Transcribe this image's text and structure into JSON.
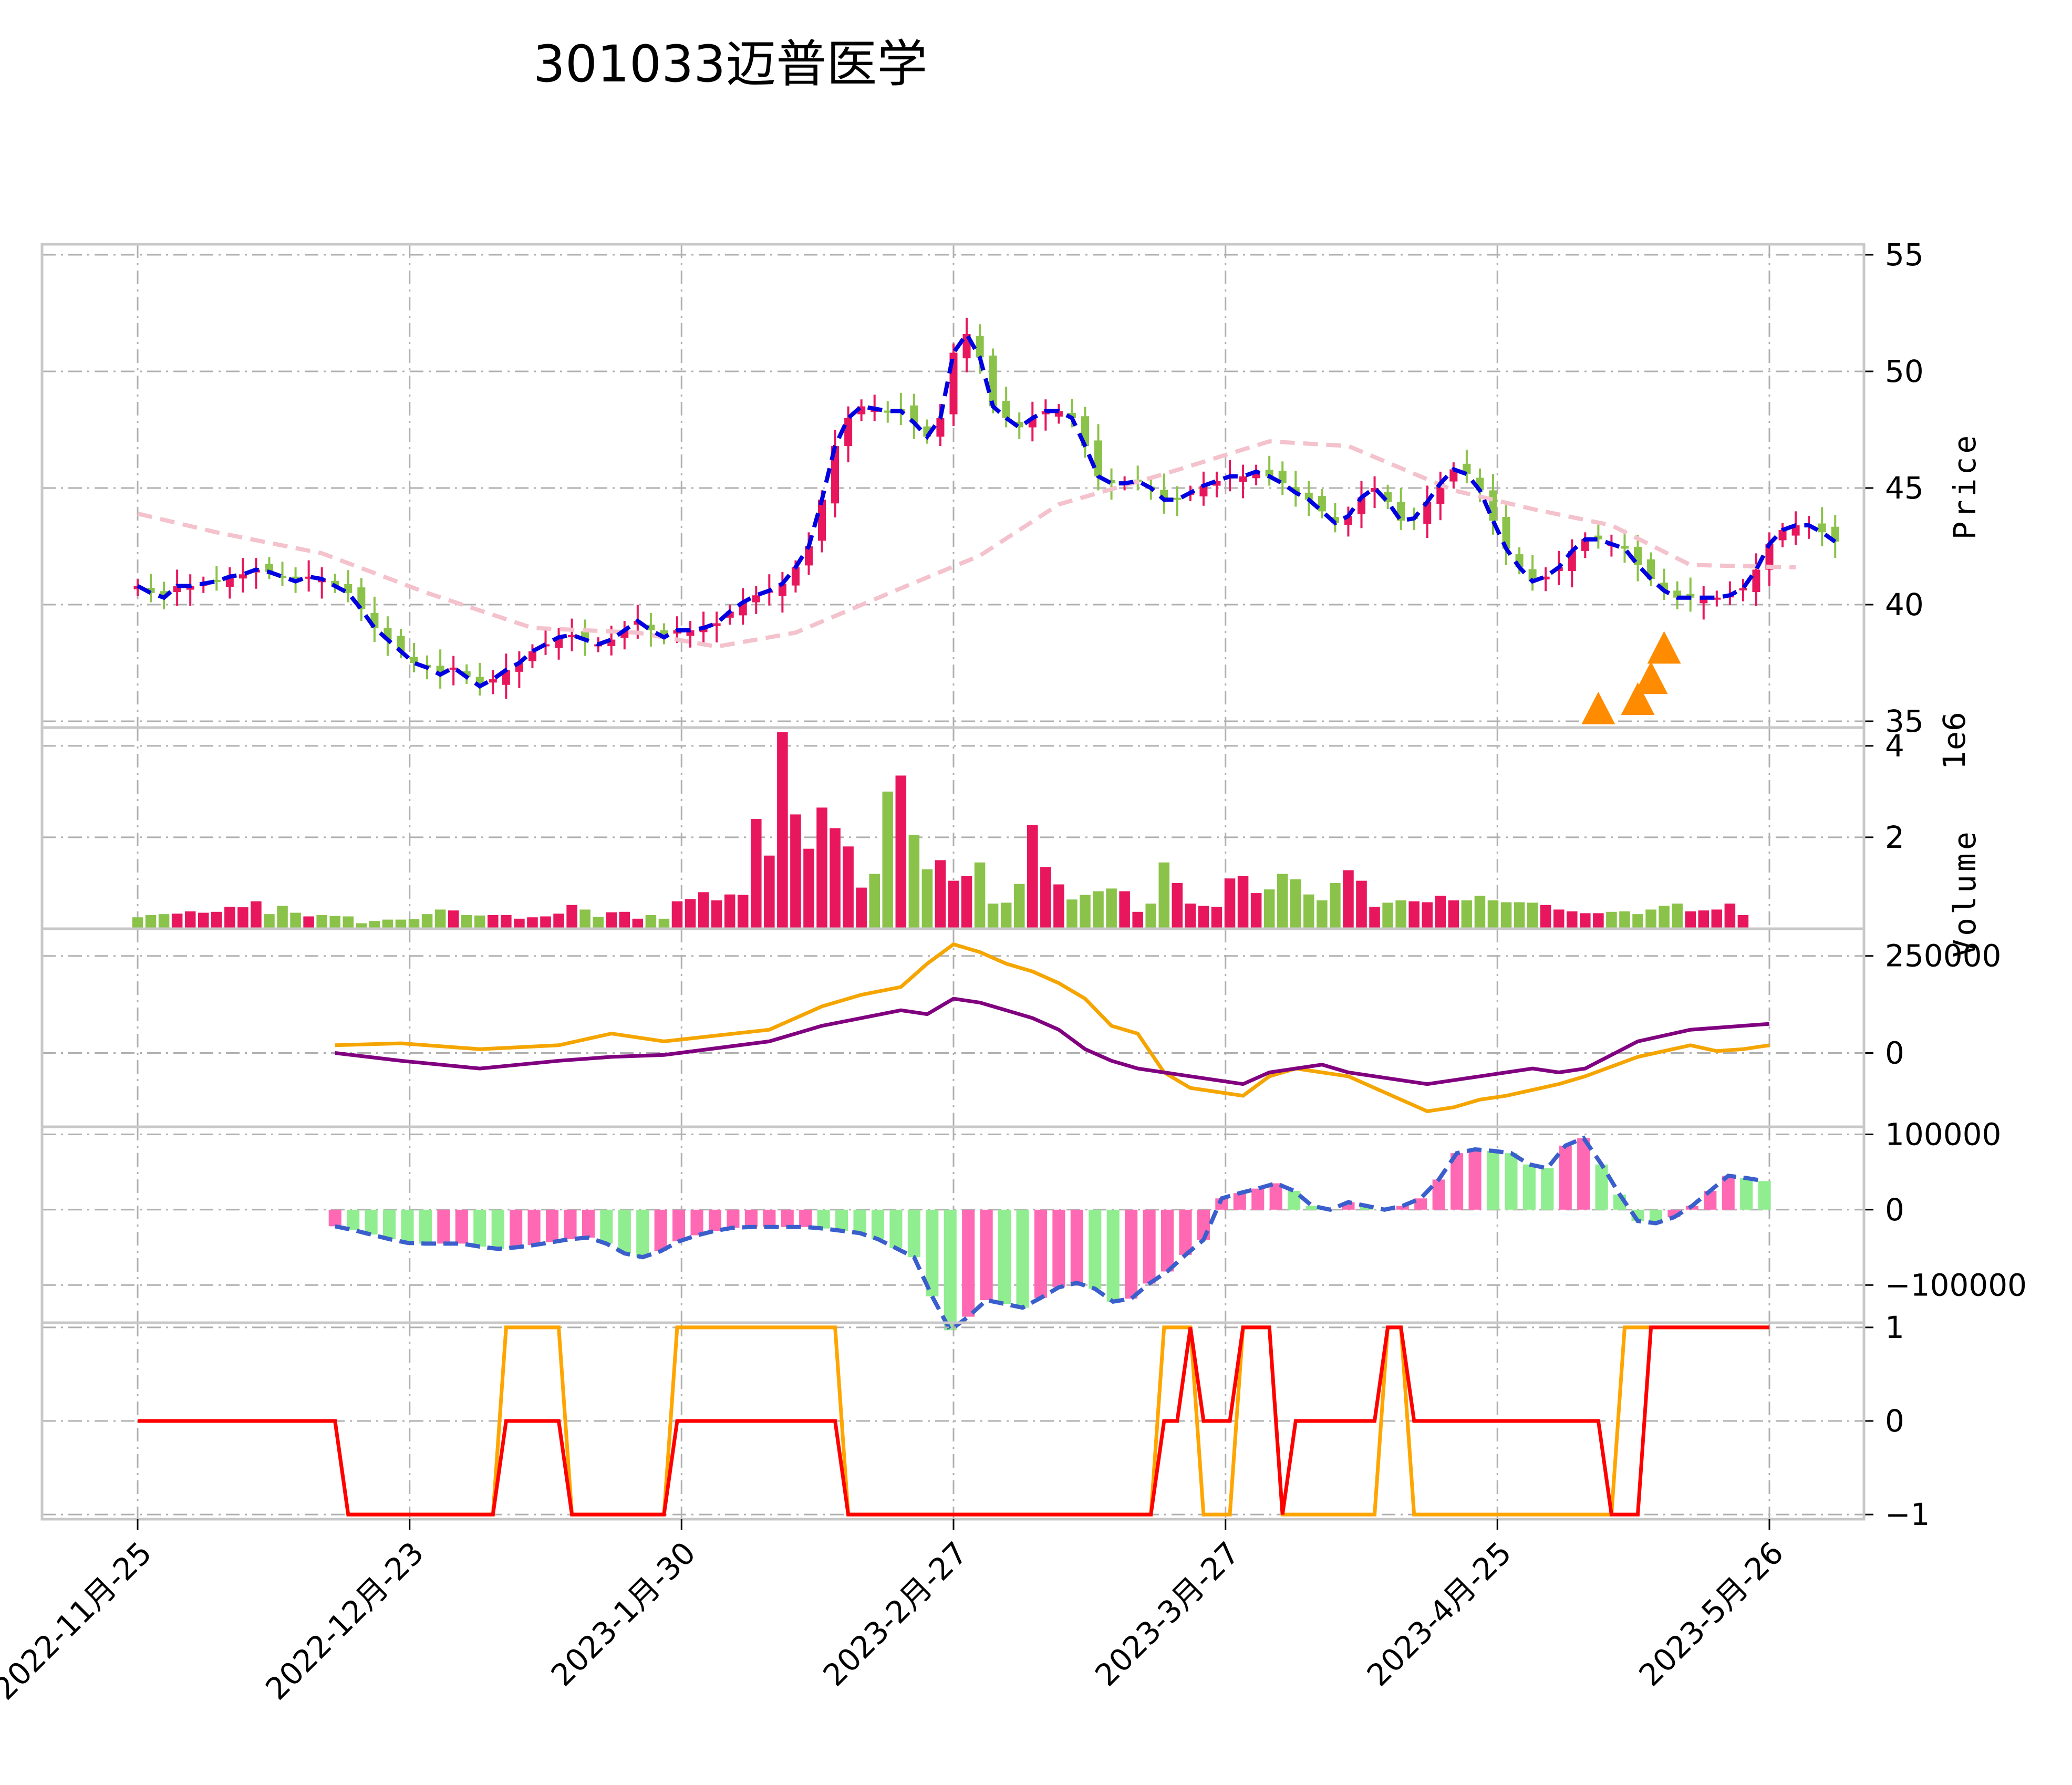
{
  "title": "301033迈普医学",
  "colors": {
    "up": "#e8175d",
    "down": "#8bc34a",
    "ma_short": "#0000e0",
    "ma_long": "#f4c2cc",
    "signal": "#ff8c00",
    "flow1": "#f5a500",
    "flow2": "#800080",
    "hist_pos": "#ff69b4",
    "hist_neg": "#90ee90",
    "hist_line": "#3a5fcd",
    "step_orange": "#ffa500",
    "step_red": "#ff0000"
  },
  "chart_data": [
    {
      "name": "price",
      "type": "candlestick",
      "ylabel": "Price",
      "ylim": [
        35,
        56
      ],
      "yticks": [
        35,
        40,
        45,
        50,
        55
      ],
      "x_ticks": [
        "2022-11月-25",
        "2022-12月-23",
        "2023-1月-30",
        "2023-2月-27",
        "2023-3月-27",
        "2023-4月-25",
        "2023-5月-26"
      ],
      "close": [
        40.8,
        40.5,
        40.3,
        40.8,
        40.8,
        40.9,
        41.0,
        41.2,
        41.3,
        41.5,
        41.4,
        41.2,
        41.0,
        41.2,
        41.1,
        40.8,
        40.5,
        39.8,
        39.0,
        38.5,
        38.0,
        37.5,
        37.3,
        37.0,
        37.3,
        36.9,
        36.5,
        36.8,
        37.2,
        37.5,
        38.0,
        38.3,
        38.6,
        38.7,
        38.5,
        38.3,
        38.5,
        38.9,
        39.3,
        38.9,
        38.6,
        38.9,
        38.9,
        39.0,
        39.2,
        39.7,
        40.1,
        40.4,
        40.6,
        40.9,
        41.6,
        42.5,
        44.5,
        46.8,
        48.0,
        48.5,
        48.4,
        48.3,
        48.3,
        47.8,
        47.2,
        48.0,
        50.8,
        51.6,
        50.6,
        48.5,
        48.0,
        47.6,
        48.0,
        48.3,
        48.3,
        48.0,
        46.8,
        45.5,
        45.2,
        45.2,
        45.3,
        45.0,
        44.5,
        44.5,
        44.8,
        45.1,
        45.3,
        45.5,
        45.5,
        45.7,
        45.5,
        45.2,
        44.8,
        44.5,
        44.0,
        43.5,
        43.8,
        44.6,
        45.0,
        44.4,
        43.6,
        43.7,
        44.4,
        45.2,
        45.8,
        45.6,
        44.9,
        43.6,
        42.4,
        41.6,
        41.0,
        41.2,
        41.6,
        42.3,
        42.8,
        42.8,
        42.6,
        42.4,
        41.7,
        41.1,
        40.6,
        40.3,
        40.3,
        40.3,
        40.3,
        40.4,
        40.7,
        41.5,
        42.6,
        43.2,
        43.4,
        43.4,
        43.1,
        42.7
      ],
      "short_ma": [
        40.8,
        40.5,
        40.3,
        40.8,
        40.8,
        40.9,
        41.0,
        41.2,
        41.3,
        41.5,
        41.4,
        41.2,
        41.0,
        41.2,
        41.1,
        40.8,
        40.5,
        39.8,
        39.0,
        38.5,
        38.0,
        37.5,
        37.3,
        37.0,
        37.3,
        36.9,
        36.5,
        36.8,
        37.2,
        37.5,
        38.0,
        38.3,
        38.6,
        38.7,
        38.5,
        38.3,
        38.5,
        38.9,
        39.3,
        38.9,
        38.6,
        38.9,
        38.9,
        39.0,
        39.2,
        39.7,
        40.1,
        40.4,
        40.6,
        40.9,
        41.6,
        42.5,
        44.5,
        46.8,
        48.0,
        48.5,
        48.4,
        48.3,
        48.3,
        47.8,
        47.2,
        48.0,
        50.8,
        51.6,
        50.6,
        48.5,
        48.0,
        47.6,
        48.0,
        48.3,
        48.3,
        48.0,
        46.8,
        45.5,
        45.2,
        45.2,
        45.3,
        45.0,
        44.5,
        44.5,
        44.8,
        45.1,
        45.3,
        45.5,
        45.5,
        45.7,
        45.5,
        45.2,
        44.8,
        44.5,
        44.0,
        43.5,
        43.8,
        44.6,
        45.0,
        44.4,
        43.6,
        43.7,
        44.4,
        45.2,
        45.8,
        45.6,
        44.9,
        43.6,
        42.4,
        41.6,
        41.0,
        41.2,
        41.6,
        42.3,
        42.8,
        42.8,
        42.6,
        42.4,
        41.7,
        41.1,
        40.6,
        40.3,
        40.3,
        40.3,
        40.3,
        40.4,
        40.7,
        41.5,
        42.6,
        43.2,
        43.4,
        43.4,
        43.1,
        42.7
      ],
      "long_ma_points": [
        [
          0,
          43.9
        ],
        [
          6,
          43.1
        ],
        [
          14,
          42.2
        ],
        [
          22,
          40.5
        ],
        [
          30,
          39.0
        ],
        [
          38,
          38.8
        ],
        [
          44,
          38.2
        ],
        [
          50,
          38.8
        ],
        [
          58,
          40.7
        ],
        [
          64,
          42.1
        ],
        [
          70,
          44.3
        ],
        [
          78,
          45.6
        ],
        [
          86,
          47.0
        ],
        [
          92,
          46.8
        ],
        [
          100,
          44.9
        ],
        [
          106,
          44.1
        ],
        [
          112,
          43.4
        ],
        [
          118,
          41.7
        ],
        [
          126,
          41.6
        ]
      ],
      "signals": [
        [
          111,
          35.5
        ],
        [
          114,
          35.9
        ],
        [
          115,
          36.8
        ],
        [
          116,
          38.1
        ]
      ]
    },
    {
      "name": "volume",
      "type": "bar",
      "ylabel": "Volume",
      "scale_label": "1e6",
      "ylim": [
        0,
        4.4
      ],
      "yticks": [
        2,
        4
      ],
      "values": [
        0.25,
        0.3,
        0.32,
        0.33,
        0.38,
        0.35,
        0.37,
        0.48,
        0.47,
        0.6,
        0.32,
        0.5,
        0.35,
        0.27,
        0.3,
        0.28,
        0.27,
        0.12,
        0.17,
        0.2,
        0.2,
        0.21,
        0.32,
        0.42,
        0.4,
        0.3,
        0.29,
        0.3,
        0.3,
        0.22,
        0.25,
        0.27,
        0.33,
        0.52,
        0.42,
        0.26,
        0.36,
        0.37,
        0.22,
        0.3,
        0.22,
        0.6,
        0.65,
        0.8,
        0.62,
        0.75,
        0.74,
        2.4,
        1.6,
        4.3,
        2.5,
        1.75,
        2.65,
        2.2,
        1.8,
        0.9,
        1.2,
        3.0,
        3.35,
        2.05,
        1.3,
        1.5,
        1.05,
        1.15,
        1.45,
        0.55,
        0.57,
        0.98,
        2.27,
        1.35,
        0.97,
        0.64,
        0.74,
        0.82,
        0.88,
        0.82,
        0.37,
        0.55,
        1.45,
        1.0,
        0.55,
        0.5,
        0.48,
        1.1,
        1.15,
        0.78,
        0.86,
        1.2,
        1.08,
        0.75,
        0.62,
        1.0,
        1.28,
        1.05,
        0.48,
        0.57,
        0.62,
        0.6,
        0.58,
        0.72,
        0.62,
        0.62,
        0.72,
        0.62,
        0.58,
        0.58,
        0.57,
        0.52,
        0.42,
        0.38,
        0.34,
        0.34,
        0.37,
        0.38,
        0.32,
        0.42,
        0.5,
        0.55,
        0.38,
        0.4,
        0.42,
        0.55,
        0.3
      ]
    },
    {
      "name": "flow",
      "type": "line",
      "ylim": [
        -190000,
        320000
      ],
      "yticks": [
        0,
        250000
      ],
      "series": [
        {
          "points": [
            [
              15,
              20000
            ],
            [
              20,
              25000
            ],
            [
              26,
              10000
            ],
            [
              32,
              20000
            ],
            [
              36,
              50000
            ],
            [
              40,
              30000
            ],
            [
              48,
              60000
            ],
            [
              52,
              120000
            ],
            [
              55,
              150000
            ],
            [
              58,
              170000
            ],
            [
              60,
              230000
            ],
            [
              62,
              280000
            ],
            [
              64,
              260000
            ],
            [
              66,
              230000
            ],
            [
              68,
              210000
            ],
            [
              70,
              180000
            ],
            [
              72,
              140000
            ],
            [
              74,
              70000
            ],
            [
              76,
              50000
            ],
            [
              78,
              -50000
            ],
            [
              80,
              -90000
            ],
            [
              82,
              -100000
            ],
            [
              84,
              -110000
            ],
            [
              86,
              -60000
            ],
            [
              88,
              -40000
            ],
            [
              90,
              -50000
            ],
            [
              92,
              -60000
            ],
            [
              96,
              -120000
            ],
            [
              98,
              -150000
            ],
            [
              100,
              -140000
            ],
            [
              102,
              -120000
            ],
            [
              104,
              -110000
            ],
            [
              106,
              -95000
            ],
            [
              108,
              -80000
            ],
            [
              110,
              -60000
            ],
            [
              114,
              -10000
            ],
            [
              118,
              20000
            ],
            [
              120,
              5000
            ],
            [
              122,
              10000
            ],
            [
              124,
              20000
            ]
          ]
        },
        {
          "points": [
            [
              15,
              0
            ],
            [
              20,
              -20000
            ],
            [
              26,
              -40000
            ],
            [
              32,
              -20000
            ],
            [
              36,
              -10000
            ],
            [
              40,
              -5000
            ],
            [
              48,
              30000
            ],
            [
              52,
              70000
            ],
            [
              55,
              90000
            ],
            [
              58,
              110000
            ],
            [
              60,
              100000
            ],
            [
              62,
              140000
            ],
            [
              64,
              130000
            ],
            [
              66,
              110000
            ],
            [
              68,
              90000
            ],
            [
              70,
              60000
            ],
            [
              72,
              10000
            ],
            [
              74,
              -20000
            ],
            [
              76,
              -40000
            ],
            [
              78,
              -50000
            ],
            [
              80,
              -60000
            ],
            [
              82,
              -70000
            ],
            [
              84,
              -80000
            ],
            [
              86,
              -50000
            ],
            [
              88,
              -40000
            ],
            [
              90,
              -30000
            ],
            [
              92,
              -50000
            ],
            [
              96,
              -70000
            ],
            [
              98,
              -80000
            ],
            [
              100,
              -70000
            ],
            [
              102,
              -60000
            ],
            [
              104,
              -50000
            ],
            [
              106,
              -40000
            ],
            [
              108,
              -50000
            ],
            [
              110,
              -40000
            ],
            [
              114,
              30000
            ],
            [
              118,
              60000
            ],
            [
              122,
              70000
            ],
            [
              124,
              75000
            ]
          ]
        }
      ]
    },
    {
      "name": "oscillator",
      "type": "bar+line",
      "ylim": [
        -150000,
        110000
      ],
      "yticks": [
        -100000,
        0,
        100000
      ],
      "values": [
        -22000,
        -27000,
        -33000,
        -39000,
        -44000,
        -45000,
        -45000,
        -45000,
        -49000,
        -52000,
        -50000,
        -47000,
        -43000,
        -39000,
        -37000,
        -45000,
        -58000,
        -63000,
        -55000,
        -42000,
        -34000,
        -28000,
        -24000,
        -23000,
        -23000,
        -23000,
        -23000,
        -25000,
        -28000,
        -31000,
        -39000,
        -51000,
        -63000,
        -115000,
        -160000,
        -142000,
        -120000,
        -125000,
        -130000,
        -117000,
        -103000,
        -97000,
        -105000,
        -122000,
        -118000,
        -98000,
        -82000,
        -60000,
        -40000,
        15000,
        22000,
        28000,
        35000,
        25000,
        5000,
        0,
        10000,
        5000,
        0,
        5000,
        15000,
        40000,
        75000,
        80000,
        78000,
        75000,
        60000,
        55000,
        85000,
        95000,
        60000,
        20000,
        -15000,
        -18000,
        -10000,
        5000,
        25000,
        45000,
        42000,
        38000
      ],
      "x_start": 15,
      "x_step": 1.375
    },
    {
      "name": "signal_state",
      "type": "step",
      "ylim": [
        -1.05,
        1.05
      ],
      "yticks": [
        -1,
        0,
        1
      ],
      "series": [
        {
          "points": [
            [
              0,
              0
            ],
            [
              15,
              0
            ],
            [
              16,
              -1
            ],
            [
              27,
              -1
            ],
            [
              28,
              1
            ],
            [
              32,
              1
            ],
            [
              33,
              -1
            ],
            [
              40,
              -1
            ],
            [
              41,
              1
            ],
            [
              53,
              1
            ],
            [
              54,
              -1
            ],
            [
              77,
              -1
            ],
            [
              78,
              1
            ],
            [
              80,
              1
            ],
            [
              81,
              -1
            ],
            [
              83,
              -1
            ],
            [
              84,
              1
            ],
            [
              86,
              1
            ],
            [
              87,
              -1
            ],
            [
              94,
              -1
            ],
            [
              95,
              1
            ],
            [
              96,
              1
            ],
            [
              97,
              -1
            ],
            [
              111,
              -1
            ],
            [
              112,
              -1
            ],
            [
              113,
              1
            ],
            [
              118,
              1
            ],
            [
              124,
              1
            ]
          ]
        },
        {
          "points": [
            [
              0,
              0
            ],
            [
              15,
              0
            ],
            [
              16,
              -1
            ],
            [
              27,
              -1
            ],
            [
              28,
              0
            ],
            [
              32,
              0
            ],
            [
              33,
              -1
            ],
            [
              40,
              -1
            ],
            [
              41,
              0
            ],
            [
              53,
              0
            ],
            [
              54,
              -1
            ],
            [
              77,
              -1
            ],
            [
              78,
              0
            ],
            [
              79,
              0
            ],
            [
              80,
              1
            ],
            [
              81,
              0
            ],
            [
              83,
              0
            ],
            [
              84,
              1
            ],
            [
              86,
              1
            ],
            [
              87,
              -1
            ],
            [
              88,
              0
            ],
            [
              94,
              0
            ],
            [
              95,
              1
            ],
            [
              96,
              1
            ],
            [
              97,
              0
            ],
            [
              111,
              0
            ],
            [
              112,
              -1
            ],
            [
              114,
              -1
            ],
            [
              115,
              1
            ],
            [
              124,
              1
            ]
          ]
        }
      ]
    }
  ]
}
